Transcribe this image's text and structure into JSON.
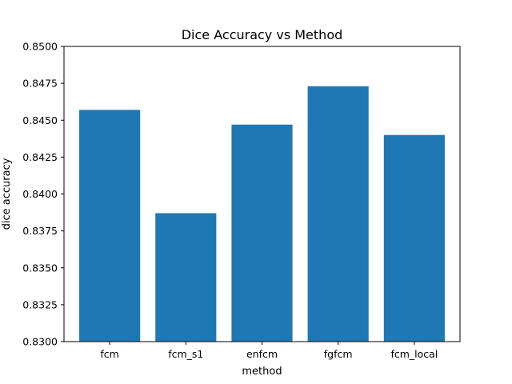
{
  "chart_data": {
    "type": "bar",
    "title": "Dice Accuracy vs Method",
    "xlabel": "method",
    "ylabel": "dice accuracy",
    "categories": [
      "fcm",
      "fcm_s1",
      "enfcm",
      "fgfcm",
      "fcm_local"
    ],
    "values": [
      0.8457,
      0.8387,
      0.8447,
      0.8473,
      0.844
    ],
    "ylim": [
      0.83,
      0.85
    ],
    "yticks": [
      "0.8300",
      "0.8325",
      "0.8350",
      "0.8375",
      "0.8400",
      "0.8425",
      "0.8450",
      "0.8475",
      "0.8500"
    ],
    "bar_color": "#1f77b4",
    "grid": false,
    "legend": "none"
  }
}
